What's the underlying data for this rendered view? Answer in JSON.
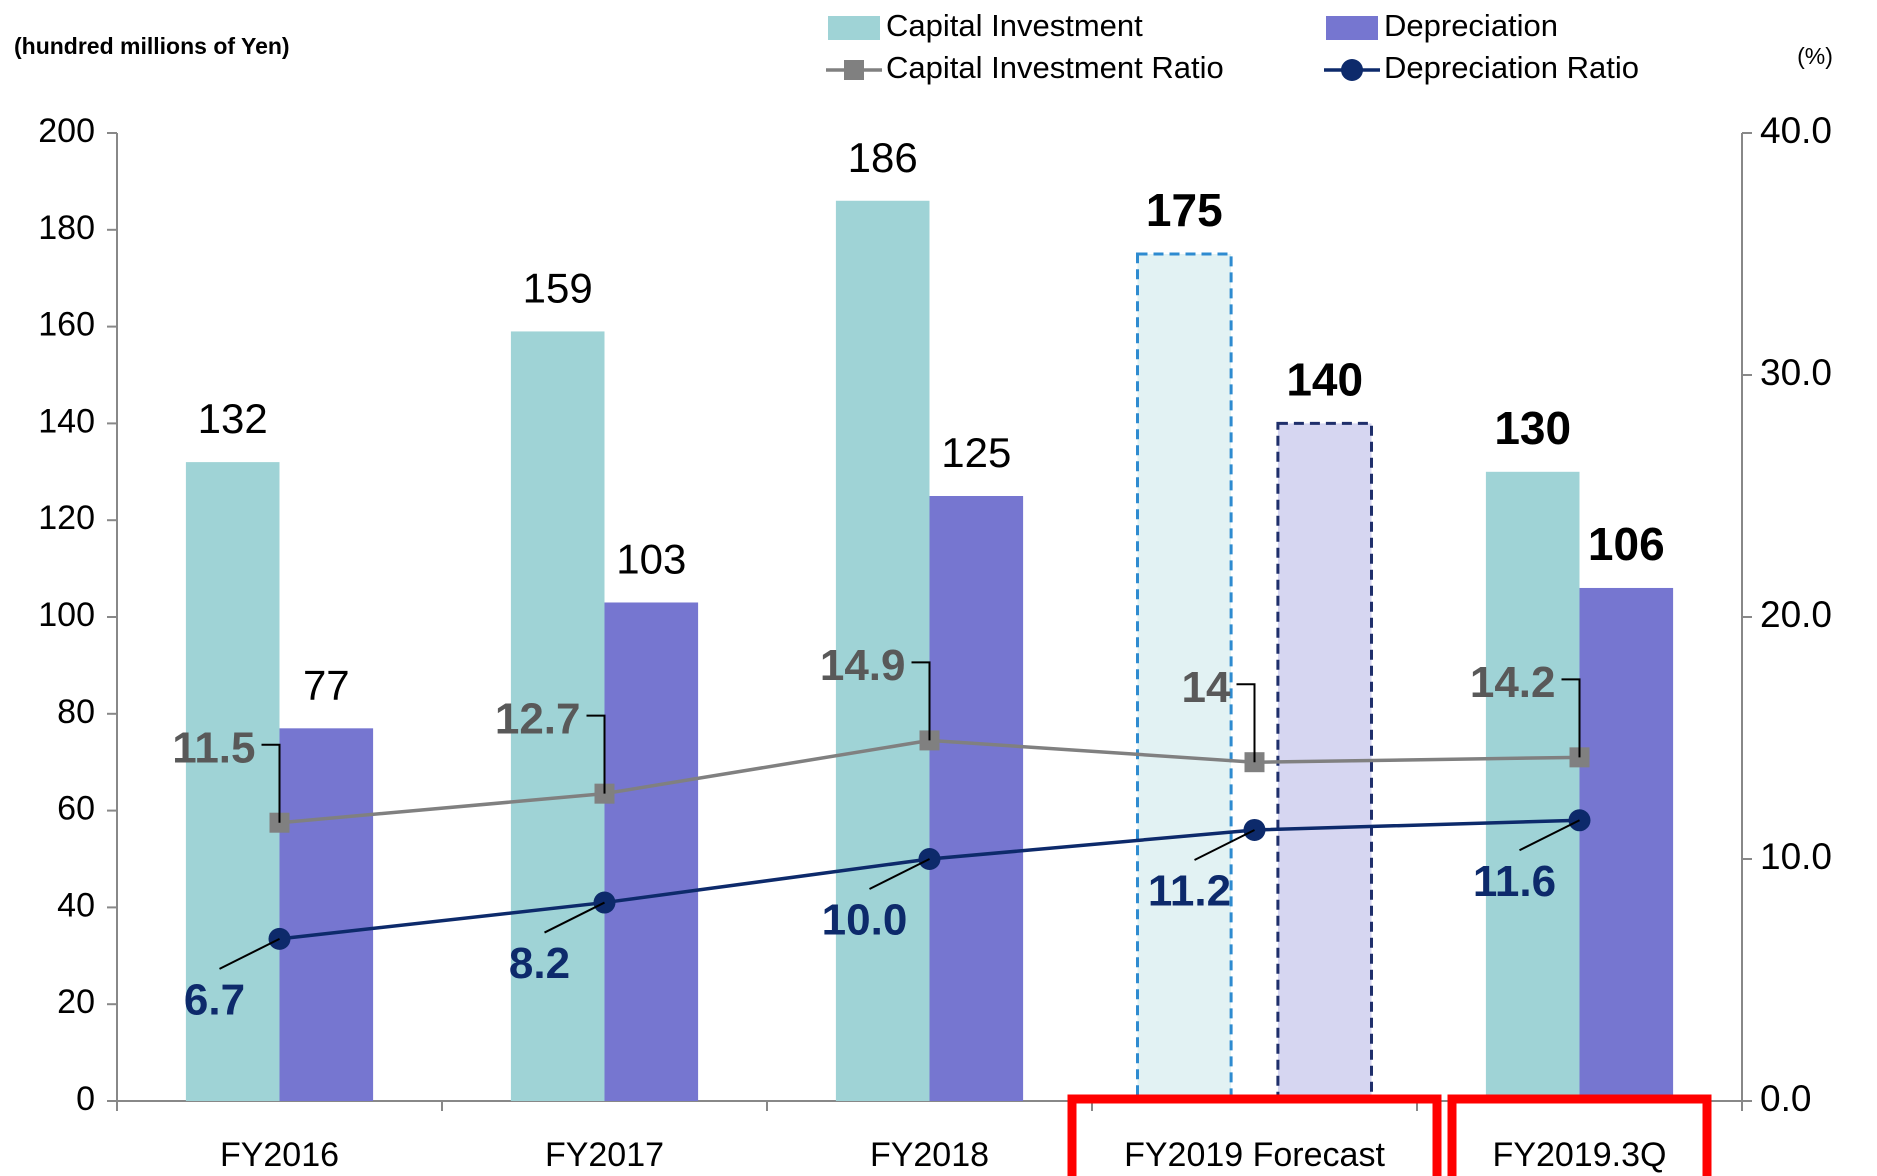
{
  "chart_data": {
    "type": "bar_line",
    "y_axis_label": "(hundred millions of Yen)",
    "y2_axis_label": "(%)",
    "categories": [
      "FY2016",
      "FY2017",
      "FY2018",
      "FY2019 Forecast",
      "FY2019.3Q"
    ],
    "highlighted": [
      false,
      false,
      false,
      true,
      true
    ],
    "forecast": [
      false,
      false,
      false,
      true,
      false
    ],
    "series": [
      {
        "name": "Capital Investment",
        "type": "bar",
        "color": "#9fd3d6",
        "outline": "#2e8bd0",
        "values": [
          132,
          159,
          186,
          175,
          130
        ]
      },
      {
        "name": "Depreciation",
        "type": "bar",
        "color": "#7676d0",
        "outline": "#1f2f6b",
        "values": [
          77,
          103,
          125,
          140,
          106
        ]
      },
      {
        "name": "Capital Investment Ratio",
        "type": "line",
        "axis": "y2",
        "marker": "square",
        "color": "#808080",
        "label_color": "#595959",
        "values": [
          11.5,
          12.7,
          14.9,
          14.0,
          14.2
        ]
      },
      {
        "name": "Depreciation Ratio",
        "type": "line",
        "axis": "y2",
        "marker": "circle",
        "color": "#0d2a6b",
        "label_color": "#0d2a6b",
        "values": [
          6.7,
          8.2,
          10.0,
          11.2,
          11.6
        ],
        "value_labels": [
          "6.7",
          "8.2",
          "10.0",
          "11.2",
          "11.6"
        ]
      }
    ],
    "ylim": [
      0,
      200
    ],
    "yticks": [
      0,
      20,
      40,
      60,
      80,
      100,
      120,
      140,
      160,
      180,
      200
    ],
    "y2lim": [
      0,
      40
    ],
    "y2ticks": [
      {
        "value": 0,
        "label": "0.0"
      },
      {
        "value": 10,
        "label": "10.0"
      },
      {
        "value": 20,
        "label": "20.0"
      },
      {
        "value": 30,
        "label": "30.0"
      },
      {
        "value": 40,
        "label": "40.0"
      }
    ],
    "legend": "top"
  }
}
